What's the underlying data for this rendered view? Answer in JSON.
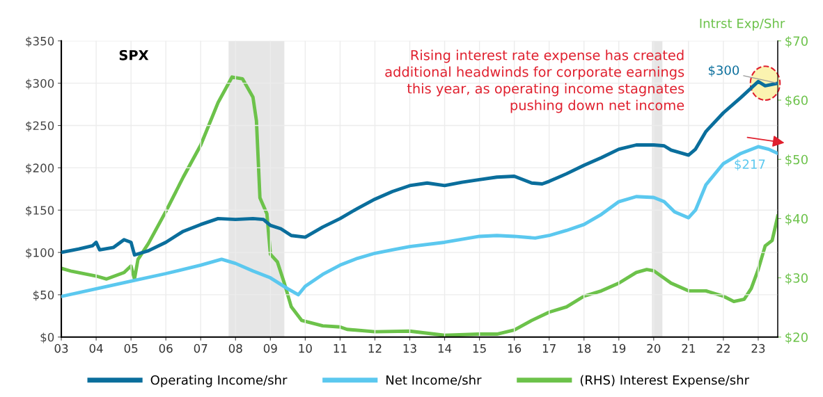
{
  "chart_data": {
    "type": "line",
    "title": "SPX",
    "y2label": "Intrst Exp/Shr",
    "xlim": [
      2003,
      2023.56
    ],
    "xticks": [
      {
        "value": 2003,
        "label": "03"
      },
      {
        "value": 2004,
        "label": "04"
      },
      {
        "value": 2005,
        "label": "05"
      },
      {
        "value": 2006,
        "label": "06"
      },
      {
        "value": 2007,
        "label": "07"
      },
      {
        "value": 2008,
        "label": "08"
      },
      {
        "value": 2009,
        "label": "09"
      },
      {
        "value": 2010,
        "label": "10"
      },
      {
        "value": 2011,
        "label": "11"
      },
      {
        "value": 2012,
        "label": "12"
      },
      {
        "value": 2013,
        "label": "13"
      },
      {
        "value": 2014,
        "label": "14"
      },
      {
        "value": 2015,
        "label": "15"
      },
      {
        "value": 2016,
        "label": "16"
      },
      {
        "value": 2017,
        "label": "17"
      },
      {
        "value": 2018,
        "label": "18"
      },
      {
        "value": 2019,
        "label": "19"
      },
      {
        "value": 2020,
        "label": "20"
      },
      {
        "value": 2021,
        "label": "21"
      },
      {
        "value": 2022,
        "label": "22"
      },
      {
        "value": 2023,
        "label": "23"
      }
    ],
    "ylim": [
      0,
      350
    ],
    "yticks": [
      {
        "value": 0,
        "label": "$0"
      },
      {
        "value": 50,
        "label": "$50"
      },
      {
        "value": 100,
        "label": "$100"
      },
      {
        "value": 150,
        "label": "$150"
      },
      {
        "value": 200,
        "label": "$200"
      },
      {
        "value": 250,
        "label": "$250"
      },
      {
        "value": 300,
        "label": "$300"
      },
      {
        "value": 350,
        "label": "$350"
      }
    ],
    "y2lim": [
      20,
      70
    ],
    "y2ticks": [
      {
        "value": 20,
        "label": "$20"
      },
      {
        "value": 30,
        "label": "$30"
      },
      {
        "value": 40,
        "label": "$40"
      },
      {
        "value": 50,
        "label": "$50"
      },
      {
        "value": 60,
        "label": "$60"
      },
      {
        "value": 70,
        "label": "$70"
      }
    ],
    "grid": true,
    "legend": "bottom",
    "line_style": "solid",
    "marker": "none",
    "bands": [
      {
        "axis": "x",
        "from": 2007.8,
        "to": 2009.4,
        "color": "#e6e6e6"
      },
      {
        "axis": "x",
        "from": 2019.95,
        "to": 2020.25,
        "color": "#e6e6e6"
      }
    ],
    "series": [
      {
        "name": "Operating Income/shr",
        "color": "#0a6e9c",
        "x": [
          2003,
          2003.5,
          2003.9,
          2004,
          2004.1,
          2004.5,
          2004.8,
          2005,
          2005.1,
          2005.5,
          2006,
          2006.5,
          2007,
          2007.5,
          2008,
          2008.5,
          2008.8,
          2009,
          2009.3,
          2009.6,
          2010,
          2010.5,
          2011,
          2011.5,
          2012,
          2012.5,
          2013,
          2013.5,
          2014,
          2014.5,
          2015,
          2015.5,
          2016,
          2016.5,
          2016.8,
          2017,
          2017.5,
          2018,
          2018.5,
          2019,
          2019.5,
          2020,
          2020.3,
          2020.5,
          2021,
          2021.2,
          2021.5,
          2022,
          2022.5,
          2023,
          2023.2,
          2023.56
        ],
        "values": [
          100,
          104,
          108,
          112,
          103,
          106,
          115,
          112,
          97,
          102,
          112,
          125,
          133,
          140,
          139,
          140,
          139,
          132,
          128,
          120,
          118,
          130,
          140,
          152,
          163,
          172,
          179,
          182,
          179,
          183,
          186,
          189,
          190,
          182,
          181,
          184,
          193,
          203,
          212,
          222,
          227,
          227,
          226,
          221,
          215,
          222,
          243,
          265,
          283,
          302,
          297,
          300
        ]
      },
      {
        "name": "Net Income/shr",
        "color": "#5bc8ef",
        "x": [
          2003,
          2004,
          2005,
          2006,
          2007,
          2007.6,
          2008,
          2008.5,
          2009,
          2009.5,
          2009.8,
          2010,
          2010.5,
          2011,
          2011.5,
          2012,
          2012.5,
          2013,
          2014,
          2015,
          2015.5,
          2016,
          2016.6,
          2017,
          2017.5,
          2018,
          2018.5,
          2019,
          2019.5,
          2020,
          2020.3,
          2020.6,
          2021,
          2021.2,
          2021.5,
          2022,
          2022.5,
          2023,
          2023.3,
          2023.56
        ],
        "values": [
          48,
          57,
          66,
          75,
          85,
          92,
          87,
          78,
          70,
          57,
          50,
          60,
          74,
          85,
          93,
          99,
          103,
          107,
          112,
          119,
          120,
          119,
          117,
          120,
          126,
          133,
          145,
          160,
          166,
          165,
          160,
          148,
          141,
          150,
          180,
          205,
          217,
          225,
          222,
          217
        ]
      },
      {
        "name": "(RHS) Interest Expense/shr",
        "color": "#6cc24a",
        "axis": "y2",
        "x": [
          2003,
          2003.3,
          2004,
          2004.3,
          2004.8,
          2005,
          2005.1,
          2005.2,
          2005.5,
          2006,
          2006.5,
          2007,
          2007.5,
          2007.9,
          2008.2,
          2008.5,
          2008.6,
          2008.7,
          2008.9,
          2009,
          2009.2,
          2009.4,
          2009.6,
          2009.9,
          2010.5,
          2011,
          2011.2,
          2012,
          2013,
          2014,
          2015,
          2015.5,
          2016,
          2016.5,
          2017,
          2017.5,
          2018,
          2018.5,
          2019,
          2019.5,
          2019.8,
          2020,
          2020.5,
          2021,
          2021.5,
          2022,
          2022.3,
          2022.6,
          2022.8,
          2023,
          2023.2,
          2023.4,
          2023.56
        ],
        "values": [
          31.6,
          31.1,
          30.3,
          29.8,
          30.9,
          32.0,
          29.8,
          33.1,
          35.8,
          41.2,
          47.0,
          52.4,
          59.6,
          63.9,
          63.6,
          60.5,
          56.5,
          43.5,
          40.8,
          34.0,
          32.7,
          29.1,
          25.1,
          22.8,
          21.9,
          21.7,
          21.3,
          20.9,
          21.0,
          20.3,
          20.5,
          20.5,
          21.2,
          22.8,
          24.2,
          25.1,
          26.9,
          27.8,
          29.1,
          30.9,
          31.4,
          31.2,
          29.1,
          27.8,
          27.8,
          26.9,
          26.0,
          26.4,
          28.2,
          31.4,
          35.4,
          36.3,
          40.4
        ]
      }
    ],
    "annotations": [
      "Rising interest rate expense has created\nadditional headwinds for corporate earnings\nthis year, as operating income stagnates\npushing down net income",
      {
        "text": "$300",
        "x": 2023.56,
        "y": 300
      },
      {
        "text": "$217",
        "x": 2023.56,
        "y": 217
      }
    ]
  }
}
